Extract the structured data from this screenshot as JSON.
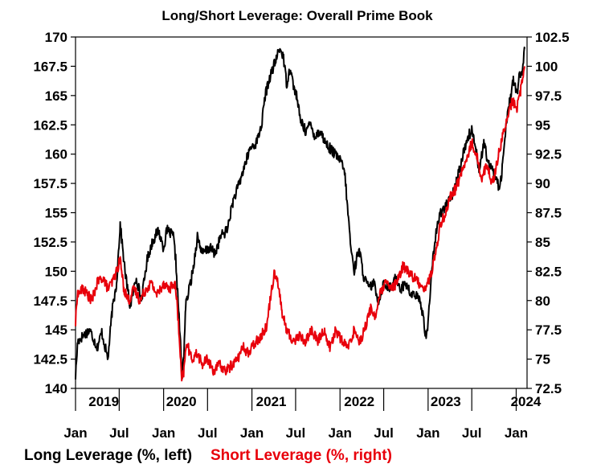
{
  "chart_data": {
    "type": "line",
    "title": "Long/Short Leverage: Overall Prime Book",
    "x_range": [
      "2019-01-01",
      "2024-02-15"
    ],
    "x_tick_labels": [
      "Jan",
      "Jul",
      "Jan",
      "Jul",
      "Jan",
      "Jul",
      "Jan",
      "Jul",
      "Jan",
      "Jul",
      "Jan"
    ],
    "x_tick_dates": [
      "2019-01-01",
      "2019-07-01",
      "2020-01-01",
      "2020-07-01",
      "2021-01-01",
      "2021-07-01",
      "2022-01-01",
      "2022-07-01",
      "2023-01-01",
      "2023-07-01",
      "2024-01-01"
    ],
    "year_labels": [
      "2019",
      "2020",
      "2021",
      "2022",
      "2023",
      "2024"
    ],
    "y_left": {
      "range": [
        140,
        170
      ],
      "ticks": [
        140,
        142.5,
        145,
        147.5,
        150,
        152.5,
        155,
        157.5,
        160,
        162.5,
        165,
        167.5,
        170
      ],
      "tick_labels": [
        "140",
        "142.5",
        "145",
        "147.5",
        "150",
        "152.5",
        "155",
        "157.5",
        "160",
        "162.5",
        "165",
        "167.5",
        "170"
      ]
    },
    "y_right": {
      "range": [
        72.5,
        102.5
      ],
      "ticks": [
        72.5,
        75,
        77.5,
        80,
        82.5,
        85,
        87.5,
        90,
        92.5,
        95,
        97.5,
        100,
        102.5
      ],
      "tick_labels": [
        "72.5",
        "75",
        "77.5",
        "80",
        "82.5",
        "85",
        "87.5",
        "90",
        "92.5",
        "95",
        "97.5",
        "100",
        "102.5"
      ]
    },
    "grid": false,
    "legend_position": "bottom",
    "series": [
      {
        "name": "Long Leverage (%, left)",
        "axis": "left",
        "color": "#000000",
        "points": [
          [
            "2019-01-01",
            141.0
          ],
          [
            "2019-01-10",
            144.0
          ],
          [
            "2019-02-01",
            144.5
          ],
          [
            "2019-03-01",
            145.0
          ],
          [
            "2019-04-01",
            143.5
          ],
          [
            "2019-04-20",
            144.8
          ],
          [
            "2019-05-15",
            142.5
          ],
          [
            "2019-06-01",
            146.5
          ],
          [
            "2019-06-20",
            149.0
          ],
          [
            "2019-07-05",
            154.0
          ],
          [
            "2019-07-25",
            150.0
          ],
          [
            "2019-08-15",
            147.0
          ],
          [
            "2019-09-10",
            149.5
          ],
          [
            "2019-10-01",
            147.5
          ],
          [
            "2019-10-25",
            151.0
          ],
          [
            "2019-11-15",
            152.5
          ],
          [
            "2019-12-10",
            153.5
          ],
          [
            "2020-01-01",
            152.0
          ],
          [
            "2020-01-15",
            153.5
          ],
          [
            "2020-02-10",
            153.0
          ],
          [
            "2020-02-20",
            151.0
          ],
          [
            "2020-03-05",
            146.0
          ],
          [
            "2020-03-18",
            141.0
          ],
          [
            "2020-03-25",
            143.0
          ],
          [
            "2020-04-01",
            147.0
          ],
          [
            "2020-05-01",
            150.0
          ],
          [
            "2020-05-20",
            153.0
          ],
          [
            "2020-06-10",
            151.5
          ],
          [
            "2020-07-10",
            152.0
          ],
          [
            "2020-08-01",
            151.5
          ],
          [
            "2020-08-25",
            153.0
          ],
          [
            "2020-09-20",
            153.5
          ],
          [
            "2020-10-15",
            156.0
          ],
          [
            "2020-11-10",
            157.5
          ],
          [
            "2020-12-01",
            159.0
          ],
          [
            "2020-12-25",
            160.5
          ],
          [
            "2021-01-20",
            161.0
          ],
          [
            "2021-02-10",
            162.5
          ],
          [
            "2021-02-25",
            165.0
          ],
          [
            "2021-03-15",
            166.5
          ],
          [
            "2021-04-10",
            168.0
          ],
          [
            "2021-04-25",
            169.0
          ],
          [
            "2021-05-10",
            168.5
          ],
          [
            "2021-05-25",
            166.0
          ],
          [
            "2021-06-10",
            167.5
          ],
          [
            "2021-06-20",
            166.0
          ],
          [
            "2021-07-05",
            165.0
          ],
          [
            "2021-07-20",
            163.0
          ],
          [
            "2021-08-10",
            162.0
          ],
          [
            "2021-09-01",
            162.5
          ],
          [
            "2021-09-20",
            161.5
          ],
          [
            "2021-10-10",
            162.0
          ],
          [
            "2021-11-01",
            161.0
          ],
          [
            "2021-11-20",
            160.5
          ],
          [
            "2021-12-10",
            160.0
          ],
          [
            "2022-01-01",
            159.5
          ],
          [
            "2022-01-20",
            158.5
          ],
          [
            "2022-02-01",
            155.5
          ],
          [
            "2022-02-15",
            152.0
          ],
          [
            "2022-03-01",
            150.0
          ],
          [
            "2022-03-20",
            152.0
          ],
          [
            "2022-04-10",
            149.5
          ],
          [
            "2022-05-01",
            148.5
          ],
          [
            "2022-05-20",
            149.0
          ],
          [
            "2022-06-10",
            147.5
          ],
          [
            "2022-07-01",
            149.0
          ],
          [
            "2022-08-01",
            148.5
          ],
          [
            "2022-08-20",
            149.5
          ],
          [
            "2022-09-10",
            148.5
          ],
          [
            "2022-10-01",
            149.0
          ],
          [
            "2022-10-20",
            148.0
          ],
          [
            "2022-11-10",
            148.0
          ],
          [
            "2022-11-25",
            147.5
          ],
          [
            "2022-12-10",
            146.5
          ],
          [
            "2022-12-22",
            144.5
          ],
          [
            "2023-01-01",
            145.5
          ],
          [
            "2023-01-15",
            150.0
          ],
          [
            "2023-02-01",
            153.0
          ],
          [
            "2023-02-20",
            155.0
          ],
          [
            "2023-03-10",
            155.5
          ],
          [
            "2023-04-01",
            156.0
          ],
          [
            "2023-04-20",
            157.0
          ],
          [
            "2023-05-15",
            159.0
          ],
          [
            "2023-06-01",
            160.5
          ],
          [
            "2023-06-15",
            161.5
          ],
          [
            "2023-07-01",
            162.0
          ],
          [
            "2023-07-15",
            161.0
          ],
          [
            "2023-08-01",
            158.5
          ],
          [
            "2023-08-20",
            161.0
          ],
          [
            "2023-09-10",
            159.0
          ],
          [
            "2023-10-01",
            158.5
          ],
          [
            "2023-10-25",
            157.0
          ],
          [
            "2023-11-05",
            159.0
          ],
          [
            "2023-11-20",
            162.5
          ],
          [
            "2023-12-05",
            164.5
          ],
          [
            "2023-12-20",
            166.5
          ],
          [
            "2024-01-05",
            165.0
          ],
          [
            "2024-01-15",
            167.0
          ],
          [
            "2024-01-25",
            166.5
          ],
          [
            "2024-02-05",
            169.0
          ]
        ]
      },
      {
        "name": "Short Leverage (%, right)",
        "axis": "right",
        "color": "#e8000b",
        "points": [
          [
            "2019-01-01",
            78.0
          ],
          [
            "2019-01-08",
            80.5
          ],
          [
            "2019-02-01",
            81.0
          ],
          [
            "2019-02-20",
            80.5
          ],
          [
            "2019-03-10",
            80.0
          ],
          [
            "2019-04-01",
            81.5
          ],
          [
            "2019-04-25",
            82.0
          ],
          [
            "2019-05-15",
            81.0
          ],
          [
            "2019-06-01",
            81.5
          ],
          [
            "2019-06-20",
            82.5
          ],
          [
            "2019-07-05",
            83.5
          ],
          [
            "2019-07-20",
            81.0
          ],
          [
            "2019-08-10",
            80.0
          ],
          [
            "2019-09-01",
            81.0
          ],
          [
            "2019-09-25",
            80.0
          ],
          [
            "2019-10-20",
            81.0
          ],
          [
            "2019-11-10",
            81.5
          ],
          [
            "2019-12-05",
            80.5
          ],
          [
            "2020-01-01",
            81.5
          ],
          [
            "2020-01-25",
            81.0
          ],
          [
            "2020-02-15",
            81.5
          ],
          [
            "2020-02-25",
            80.0
          ],
          [
            "2020-03-08",
            76.0
          ],
          [
            "2020-03-16",
            73.0
          ],
          [
            "2020-03-25",
            74.0
          ],
          [
            "2020-04-05",
            76.5
          ],
          [
            "2020-04-25",
            75.0
          ],
          [
            "2020-05-20",
            75.5
          ],
          [
            "2020-06-10",
            74.5
          ],
          [
            "2020-07-01",
            75.0
          ],
          [
            "2020-07-25",
            74.0
          ],
          [
            "2020-08-20",
            74.5
          ],
          [
            "2020-09-15",
            74.0
          ],
          [
            "2020-10-10",
            74.5
          ],
          [
            "2020-11-01",
            75.0
          ],
          [
            "2020-11-25",
            76.0
          ],
          [
            "2020-12-20",
            75.5
          ],
          [
            "2021-01-15",
            76.5
          ],
          [
            "2021-02-10",
            77.0
          ],
          [
            "2021-03-05",
            78.0
          ],
          [
            "2021-03-20",
            80.5
          ],
          [
            "2021-04-05",
            82.5
          ],
          [
            "2021-04-20",
            81.5
          ],
          [
            "2021-05-05",
            79.0
          ],
          [
            "2021-05-25",
            77.5
          ],
          [
            "2021-06-20",
            76.5
          ],
          [
            "2021-07-15",
            77.0
          ],
          [
            "2021-08-10",
            76.5
          ],
          [
            "2021-09-05",
            77.5
          ],
          [
            "2021-10-01",
            76.5
          ],
          [
            "2021-10-25",
            77.5
          ],
          [
            "2021-11-20",
            76.0
          ],
          [
            "2021-12-15",
            77.5
          ],
          [
            "2022-01-10",
            76.5
          ],
          [
            "2022-02-05",
            76.0
          ],
          [
            "2022-03-01",
            77.5
          ],
          [
            "2022-03-25",
            76.5
          ],
          [
            "2022-04-20",
            78.0
          ],
          [
            "2022-05-10",
            79.5
          ],
          [
            "2022-05-25",
            78.5
          ],
          [
            "2022-06-15",
            80.5
          ],
          [
            "2022-07-10",
            81.5
          ],
          [
            "2022-08-01",
            81.0
          ],
          [
            "2022-08-25",
            81.5
          ],
          [
            "2022-09-20",
            83.0
          ],
          [
            "2022-10-10",
            82.5
          ],
          [
            "2022-11-01",
            82.0
          ],
          [
            "2022-11-25",
            81.5
          ],
          [
            "2022-12-20",
            81.0
          ],
          [
            "2023-01-10",
            82.0
          ],
          [
            "2023-02-01",
            84.0
          ],
          [
            "2023-02-20",
            86.5
          ],
          [
            "2023-03-15",
            87.5
          ],
          [
            "2023-04-05",
            89.0
          ],
          [
            "2023-04-25",
            89.5
          ],
          [
            "2023-05-20",
            91.0
          ],
          [
            "2023-06-10",
            92.0
          ],
          [
            "2023-07-01",
            93.5
          ],
          [
            "2023-07-20",
            92.5
          ],
          [
            "2023-08-10",
            90.5
          ],
          [
            "2023-09-01",
            91.5
          ],
          [
            "2023-09-25",
            90.0
          ],
          [
            "2023-10-15",
            92.0
          ],
          [
            "2023-11-05",
            94.0
          ],
          [
            "2023-11-25",
            95.5
          ],
          [
            "2023-12-15",
            97.0
          ],
          [
            "2024-01-05",
            96.5
          ],
          [
            "2024-01-20",
            98.0
          ],
          [
            "2024-02-05",
            100.0
          ]
        ]
      }
    ]
  }
}
